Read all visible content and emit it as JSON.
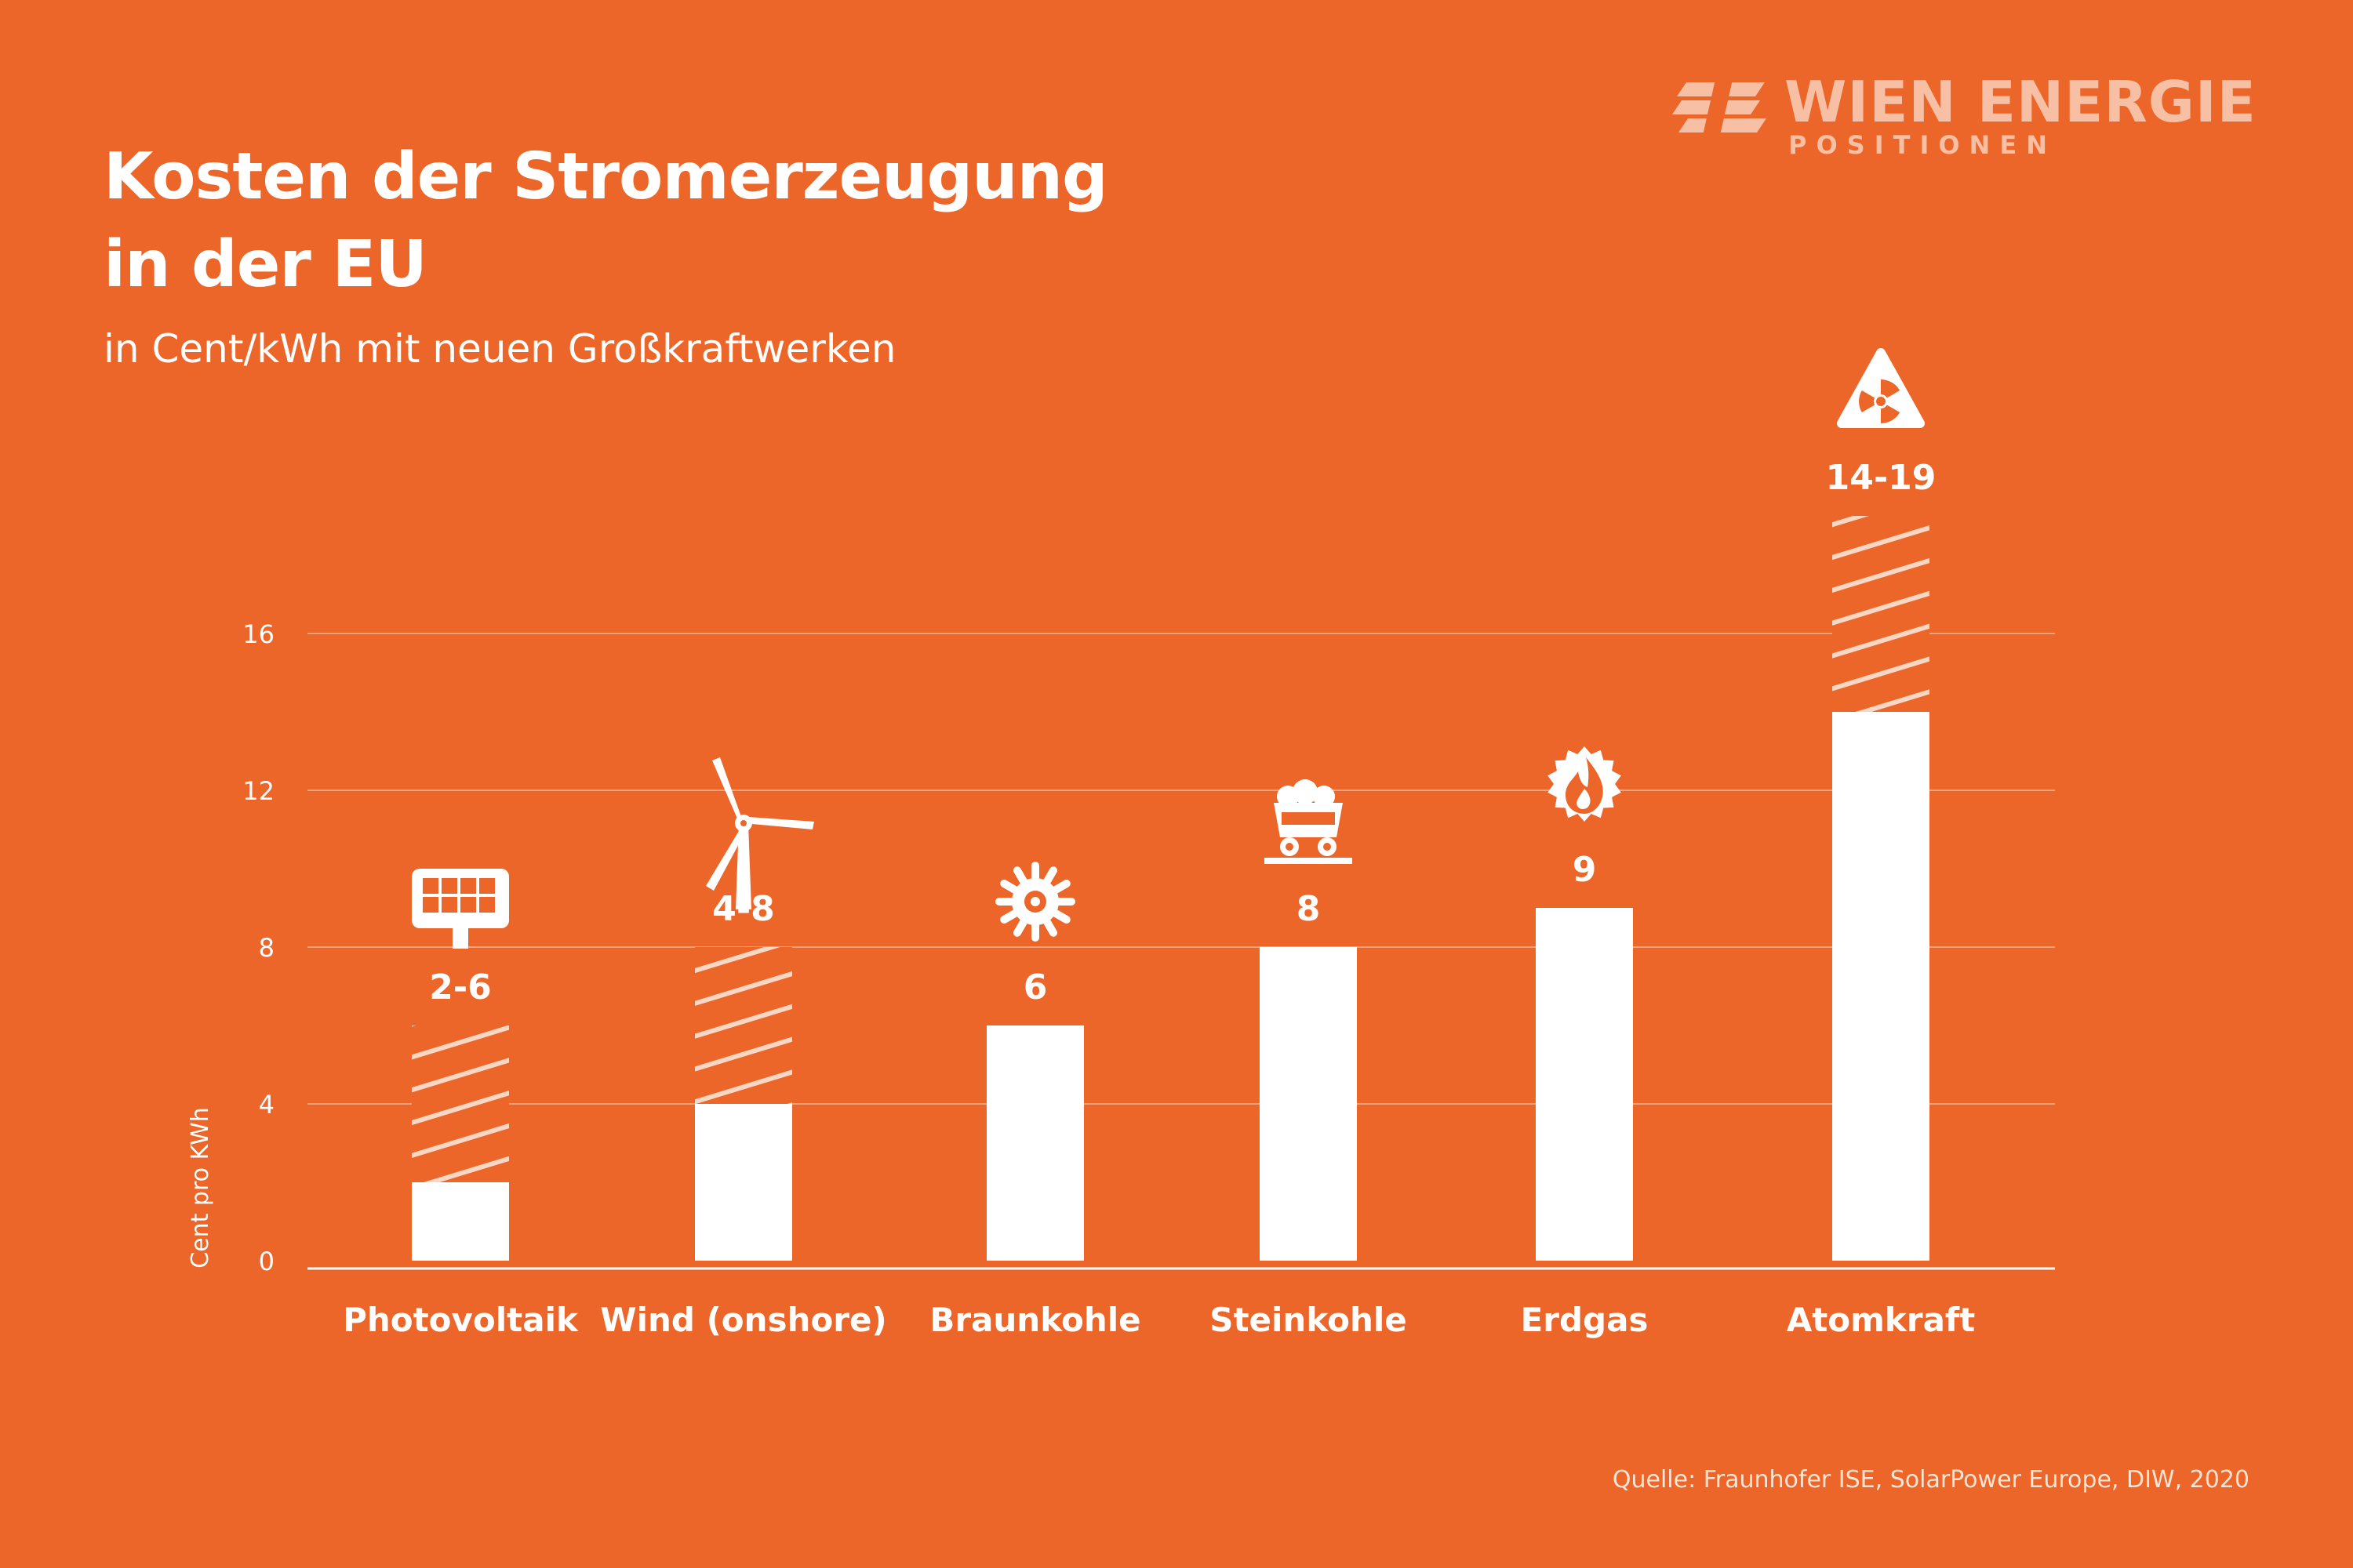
{
  "title_line1": "Kosten der Stromerzeugung",
  "title_line2": "in der EU",
  "subtitle": "in Cent/kWh mit neuen Großkraftwerken",
  "source": "Quelle: Fraunhofer ISE, SolarPower Europe, DIW, 2020",
  "logo": {
    "name": "WIEN ENERGIE",
    "tagline": "POSITIONEN"
  },
  "colors": {
    "background": "#EB6628",
    "bar": "#FFFFFF",
    "text": "#FFFFFF",
    "logo": "#F7BFA4"
  },
  "chart_data": {
    "type": "bar",
    "title": "",
    "xlabel": "",
    "ylabel": "Cent pro KWh",
    "ylim": [
      0,
      16
    ],
    "yticks": [
      0,
      4,
      8,
      12,
      16
    ],
    "grid": true,
    "categories": [
      "Photovoltaik",
      "Wind (onshore)",
      "Braunkohle",
      "Steinkohle",
      "Erdgas",
      "Atomkraft"
    ],
    "values_min": [
      2,
      4,
      6,
      8,
      9,
      14
    ],
    "values_max": [
      6,
      8,
      6,
      8,
      9,
      19
    ],
    "data_labels": [
      "2-6",
      "4-8",
      "6",
      "8",
      "9",
      "14-19"
    ],
    "icons": [
      "solar-panel-icon",
      "wind-turbine-icon",
      "lignite-icon",
      "coal-cart-icon",
      "gas-flame-icon",
      "radiation-icon"
    ]
  }
}
